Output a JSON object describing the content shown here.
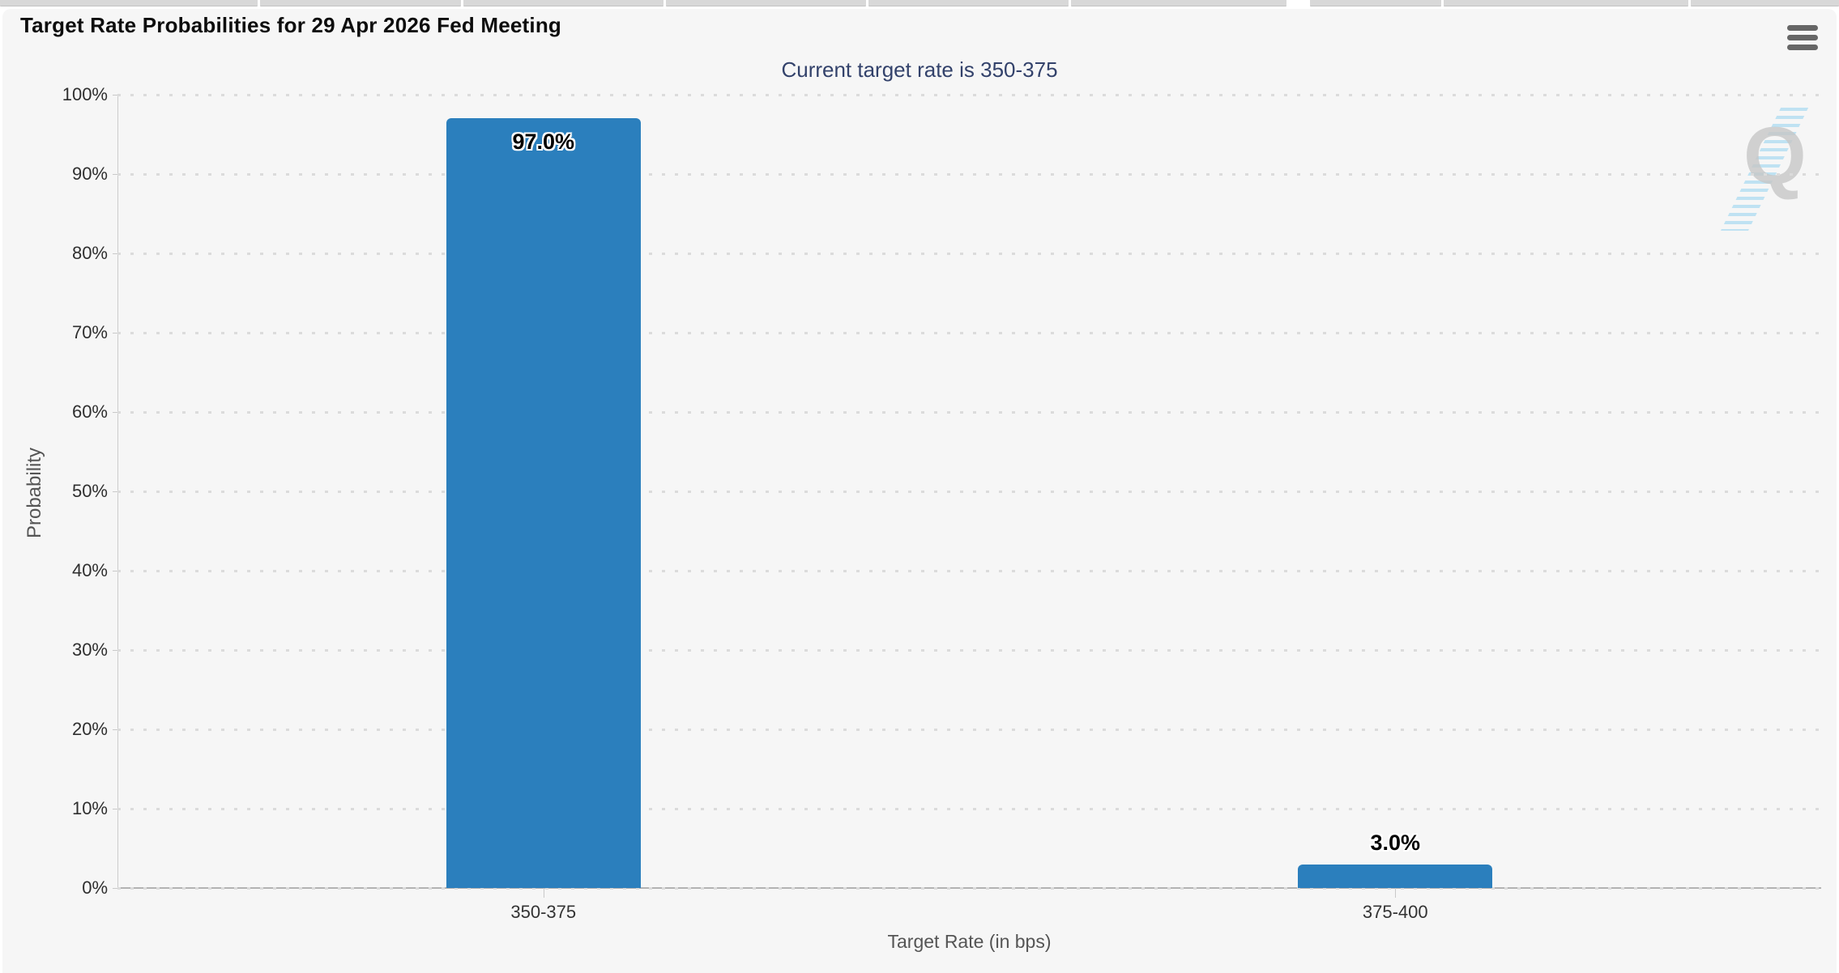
{
  "header": {
    "title": "Target Rate Probabilities for 29 Apr 2026 Fed Meeting",
    "subtitle": "Current target rate is 350-375",
    "menu_icon": "hamburger-icon",
    "watermark_letter": "Q"
  },
  "chart_data": {
    "type": "bar",
    "title": "Target Rate Probabilities for 29 Apr 2026 Fed Meeting",
    "subtitle": "Current target rate is 350-375",
    "categories": [
      "350-375",
      "375-400"
    ],
    "values": [
      97.0,
      3.0
    ],
    "value_labels": [
      "97.0%",
      "3.0%"
    ],
    "xlabel": "Target Rate (in bps)",
    "ylabel": "Probability",
    "ylim": [
      0,
      100
    ],
    "ytick_step": 10,
    "ytick_labels": [
      "0%",
      "10%",
      "20%",
      "30%",
      "40%",
      "50%",
      "60%",
      "70%",
      "80%",
      "90%",
      "100%"
    ],
    "grid": "horizontal-dotted",
    "legend": "none"
  },
  "colors": {
    "bar": "#2b7fbd",
    "subtitle_navy": "#33426b",
    "panel_bg": "#f6f6f6",
    "grid_dot": "#dbdbdb",
    "axis_line": "#b3b3b3",
    "menu_icon_gray": "#666666",
    "watermark_gray": "#c7c7c7",
    "watermark_blue": "#b5dff2"
  }
}
